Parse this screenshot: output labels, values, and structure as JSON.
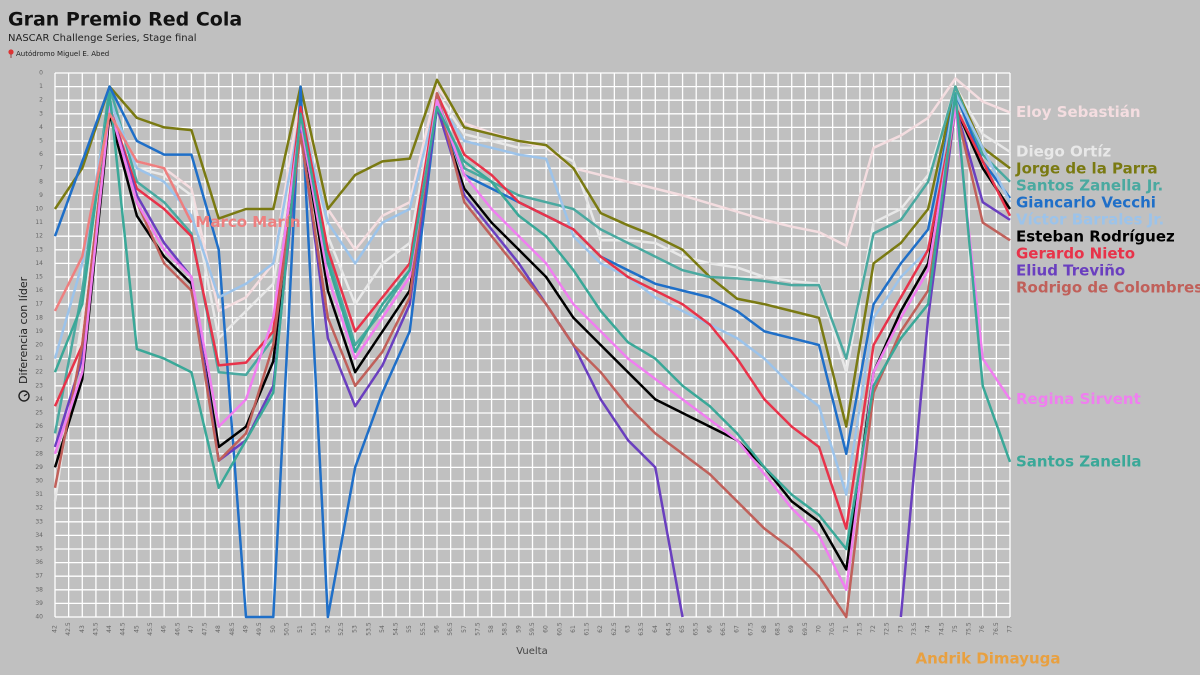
{
  "chart_data": {
    "type": "line",
    "title": "Gran Premio Red Cola",
    "subtitle": "NASCAR Challenge Series, Stage final",
    "caption": "Autódromo Miguel E. Abed",
    "x_label": "Vuelta",
    "y_label": "Diferencia con líder",
    "grid": true,
    "xlim": [
      42,
      77
    ],
    "ylim": [
      40,
      0
    ],
    "xticks": [
      42,
      42.5,
      43,
      43.5,
      44,
      44.5,
      45,
      45.5,
      46,
      46.5,
      47,
      47.5,
      48,
      48.5,
      49,
      49.5,
      50,
      50.5,
      51,
      51.5,
      52,
      52.5,
      53,
      53.5,
      54,
      54.5,
      55,
      55.5,
      56,
      56.5,
      57,
      57.5,
      58,
      58.5,
      59,
      59.5,
      60,
      60.5,
      61,
      61.5,
      62,
      62.5,
      63,
      63.5,
      64,
      64.5,
      65,
      65.5,
      66,
      66.5,
      67,
      67.5,
      68,
      68.5,
      69,
      69.5,
      70,
      70.5,
      71,
      71.5,
      72,
      72.5,
      73,
      73.5,
      74,
      74.5,
      75,
      75.5,
      76,
      76.5,
      77
    ],
    "yticks": [
      0,
      1,
      2,
      3,
      4,
      5,
      6,
      7,
      8,
      9,
      10,
      11,
      12,
      13,
      14,
      15,
      16,
      17,
      18,
      19,
      20,
      21,
      22,
      23,
      24,
      25,
      26,
      27,
      28,
      29,
      30,
      31,
      32,
      33,
      34,
      35,
      36,
      37,
      38,
      39,
      40
    ],
    "x": [
      42,
      43,
      44,
      45,
      46,
      47,
      48,
      49,
      50,
      51,
      52,
      53,
      54,
      55,
      56,
      57,
      58,
      59,
      60,
      61,
      62,
      63,
      64,
      65,
      66,
      67,
      68,
      69,
      70,
      71,
      72,
      73,
      74,
      75,
      76,
      77
    ],
    "series": [
      {
        "name": "Eloy Sebastián",
        "color": "#f4dde0",
        "values": [
          30.5,
          19,
          3,
          6.5,
          7,
          8.5,
          17.5,
          16.5,
          14,
          1.5,
          10,
          13,
          10.5,
          9.5,
          1,
          3.7,
          4.4,
          5,
          5.5,
          7,
          7.5,
          8,
          8.5,
          9,
          9.6,
          10.2,
          10.8,
          11.3,
          11.7,
          12.7,
          5.5,
          4.6,
          3.3,
          0.4,
          2.1,
          2.9
        ]
      },
      {
        "name": "Diego Ortíz",
        "color": "#e8e8e8",
        "values": [
          31.5,
          18,
          2,
          7,
          7.5,
          9,
          19.5,
          17.5,
          15.5,
          3.5,
          12,
          17,
          14,
          12.5,
          1.5,
          4.5,
          5,
          5.5,
          5.5,
          6.5,
          12.3,
          12.3,
          12.5,
          13.5,
          14,
          14.3,
          15,
          15.3,
          15.5,
          22,
          11,
          10,
          7.5,
          1,
          4.5,
          5.8
        ]
      },
      {
        "name": "Jorge de la Parra",
        "color": "#7a7a12",
        "values": [
          10,
          7,
          1,
          3.3,
          4,
          4.2,
          10.7,
          10,
          10,
          1,
          10,
          7.5,
          6.5,
          6.3,
          0.5,
          4,
          4.5,
          5,
          5.3,
          7,
          10.3,
          11.2,
          12,
          13,
          15,
          16.6,
          17,
          17.5,
          18,
          26,
          14,
          12.5,
          10,
          1,
          5.5,
          7
        ]
      },
      {
        "name": "Santos Zanella Jr.",
        "color": "#4aa9a0",
        "values": [
          26.5,
          16,
          1,
          8,
          9.5,
          11.8,
          22,
          22.2,
          19.5,
          3,
          13.5,
          20,
          17.5,
          14.5,
          2,
          7,
          8,
          9,
          9.5,
          10,
          11.5,
          12.5,
          13.5,
          14.5,
          15,
          15.1,
          15.3,
          15.6,
          15.6,
          21,
          11.8,
          10.8,
          8,
          1,
          6,
          8
        ]
      },
      {
        "name": "Giancarlo Vecchi",
        "color": "#1f6fc8",
        "values": [
          12,
          6.5,
          1,
          5,
          6,
          6,
          13,
          40,
          40,
          1,
          40,
          29,
          23.5,
          19,
          2.5,
          7.5,
          8.5,
          9.5,
          10.5,
          11.5,
          13.5,
          14.5,
          15.5,
          16,
          16.5,
          17.5,
          19,
          19.5,
          20,
          28,
          17,
          14,
          11.5,
          1.5,
          6.5,
          9.2
        ]
      },
      {
        "name": "Víctor Barrales Jr.",
        "color": "#9cc3ea",
        "values": [
          21,
          14,
          2,
          7,
          8,
          10.5,
          16.5,
          15.5,
          14,
          3,
          11,
          14,
          11,
          10,
          2,
          5,
          5.5,
          6,
          6.3,
          12,
          14,
          15,
          16.5,
          17.5,
          18.5,
          19.5,
          21,
          23,
          24.5,
          31,
          18,
          15,
          13,
          1.5,
          5.5,
          9.5
        ]
      },
      {
        "name": "Esteban Rodríguez",
        "color": "#000000",
        "values": [
          29,
          22.5,
          3,
          10.5,
          13.5,
          15.5,
          27.5,
          26,
          21.2,
          3.5,
          16,
          22,
          19,
          16,
          2.5,
          8.5,
          11,
          13,
          15,
          18,
          20,
          22,
          24,
          25,
          26,
          27,
          29,
          31.5,
          33,
          36.5,
          22,
          17.5,
          14,
          2.5,
          7,
          10
        ]
      },
      {
        "name": "Gerardo Nieto",
        "color": "#e8334a",
        "values": [
          24.5,
          20,
          2.5,
          8.5,
          10,
          12,
          21.5,
          21.3,
          19,
          2.5,
          13,
          19,
          16.5,
          14,
          1.5,
          6,
          7.5,
          9.5,
          10.5,
          11.5,
          13.5,
          15,
          16,
          17,
          18.5,
          21,
          24,
          26,
          27.5,
          33.5,
          20,
          16.5,
          13,
          2.5,
          6.5,
          10.5
        ]
      },
      {
        "name": "Eliud Treviño",
        "color": "#6a3fbf",
        "values": [
          27.5,
          21,
          2.5,
          9,
          12.5,
          15,
          28.5,
          27,
          23,
          4,
          19.5,
          24.5,
          21.5,
          17,
          2.5,
          9,
          11.5,
          14,
          17,
          20,
          24,
          27,
          29,
          40,
          null,
          null,
          null,
          null,
          null,
          null,
          null,
          40,
          18,
          2.5,
          9.5,
          10.8
        ]
      },
      {
        "name": "Rodrigo de Colombres",
        "color": "#c0605a",
        "values": [
          30.5,
          20,
          2.5,
          9.5,
          14,
          16,
          28.5,
          26.5,
          20,
          4.5,
          18,
          23,
          20.5,
          16.5,
          1.5,
          9.5,
          12,
          14.5,
          17,
          20,
          22,
          24.5,
          26.5,
          28,
          29.5,
          31.5,
          33.5,
          35,
          37,
          40,
          23.5,
          19,
          16,
          2.5,
          11,
          12.3
        ]
      },
      {
        "name": "Regina Sirvent",
        "color": "#f07ef0",
        "values": [
          28,
          22,
          2.5,
          9.5,
          13,
          15,
          26,
          24,
          18,
          3.5,
          15,
          21,
          18,
          15,
          2,
          7.5,
          10,
          12,
          14,
          17,
          19,
          21,
          22.5,
          24,
          25.5,
          27,
          29.5,
          32,
          34,
          38,
          22,
          18,
          14.5,
          2.5,
          21,
          24
        ]
      },
      {
        "name": "Santos Zanella",
        "color": "#3aa898",
        "values": [
          22,
          17,
          1.5,
          20.3,
          21,
          22,
          30.5,
          27,
          23.5,
          3,
          14,
          20.5,
          17,
          14.5,
          2.5,
          6.5,
          8,
          10.5,
          12,
          14.5,
          17.5,
          19.8,
          21,
          23,
          24.5,
          26.5,
          29,
          31,
          32.5,
          35,
          23,
          19.5,
          17,
          1.5,
          23,
          28.6
        ]
      },
      {
        "name": "Marco Marín",
        "color": "#ee7f7f",
        "values": [
          17.5,
          13.5,
          3,
          6.5,
          7,
          11,
          null,
          null,
          null,
          null,
          null,
          null,
          null,
          null,
          null,
          null,
          null,
          null,
          null,
          null,
          null,
          null,
          null,
          null,
          null,
          null,
          null,
          null,
          null,
          null,
          null,
          null,
          null,
          null,
          null,
          null
        ]
      },
      {
        "name": "Andrik Dimayuga",
        "color": "#e8a040",
        "values": [
          null,
          null,
          null,
          null,
          null,
          null,
          null,
          null,
          null,
          null,
          null,
          null,
          null,
          null,
          null,
          null,
          null,
          null,
          null,
          null,
          null,
          null,
          null,
          null,
          null,
          null,
          null,
          null,
          null,
          null,
          null,
          null,
          null,
          null,
          null,
          null
        ]
      }
    ]
  }
}
